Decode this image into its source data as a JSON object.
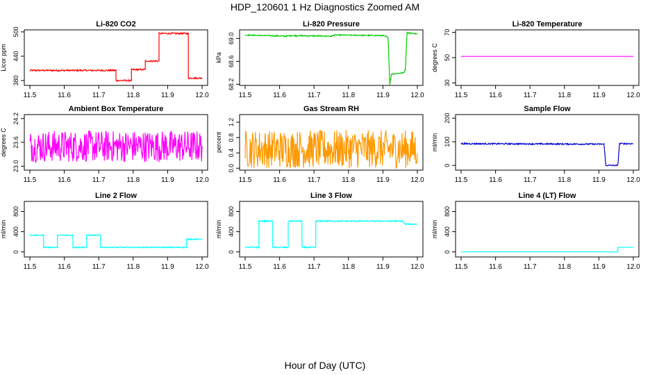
{
  "title": "HDP_120601  1 Hz Diagnostics Zoomed AM",
  "xlabel": "Hour of Day (UTC)",
  "chart_data": [
    {
      "type": "line",
      "title": "Li-820 CO2",
      "ylabel": "Licor ppm",
      "color": "#ff0000",
      "xlim": [
        11.5,
        12.0
      ],
      "ylim": [
        368,
        505
      ],
      "xticks": [
        "11.5",
        "11.6",
        "11.7",
        "11.8",
        "11.9",
        "12.0"
      ],
      "yticks": [
        {
          "v": 380,
          "label": "380"
        },
        {
          "v": 440,
          "label": "440"
        },
        {
          "v": 500,
          "label": "500"
        }
      ],
      "noise": 2,
      "series": [
        {
          "x": [
            11.5,
            11.75,
            11.75,
            11.795,
            11.795,
            11.835,
            11.835,
            11.875,
            11.875,
            11.96,
            11.96,
            12.0
          ],
          "values": [
            405,
            405,
            380,
            380,
            407,
            407,
            428,
            428,
            496,
            496,
            386,
            386
          ]
        }
      ]
    },
    {
      "type": "line",
      "title": "Li-820 Pressure",
      "ylabel": "kPa",
      "color": "#00cc00",
      "xlim": [
        11.5,
        12.0
      ],
      "ylim": [
        68.18,
        69.15
      ],
      "xticks": [
        "11.5",
        "11.6",
        "11.7",
        "11.8",
        "11.9",
        "12.0"
      ],
      "yticks": [
        {
          "v": 68.2,
          "label": "68.2"
        },
        {
          "v": 68.6,
          "label": "68.6"
        },
        {
          "v": 69.0,
          "label": "69.0"
        }
      ],
      "noise": 0.01,
      "series": [
        {
          "x": [
            11.5,
            11.62,
            11.63,
            11.75,
            11.76,
            11.9,
            11.915,
            11.92,
            11.925,
            11.96,
            11.965,
            11.97,
            12.0
          ],
          "values": [
            69.06,
            69.04,
            69.05,
            69.04,
            69.06,
            69.05,
            69.02,
            68.2,
            68.38,
            68.4,
            68.45,
            69.1,
            69.08
          ]
        }
      ]
    },
    {
      "type": "line",
      "title": "Li-820 Temperature",
      "ylabel": "degrees C",
      "color": "#ff00ff",
      "xlim": [
        11.5,
        12.0
      ],
      "ylim": [
        28,
        72
      ],
      "xticks": [
        "11.5",
        "11.6",
        "11.7",
        "11.8",
        "11.9",
        "12.0"
      ],
      "yticks": [
        {
          "v": 30,
          "label": "30"
        },
        {
          "v": 50,
          "label": "50"
        },
        {
          "v": 70,
          "label": "70"
        }
      ],
      "noise": 0,
      "series": [
        {
          "x": [
            11.5,
            12.0
          ],
          "values": [
            51,
            51
          ]
        }
      ]
    },
    {
      "type": "line",
      "title": "Ambient Box Temperature",
      "ylabel": "degrees C",
      "color": "#ff00ff",
      "xlim": [
        11.5,
        12.0
      ],
      "ylim": [
        22.9,
        24.3
      ],
      "xticks": [
        "11.5",
        "11.6",
        "11.7",
        "11.8",
        "11.9",
        "12.0"
      ],
      "yticks": [
        {
          "v": 23.0,
          "label": "23.0"
        },
        {
          "v": 23.6,
          "label": "23.6"
        },
        {
          "v": 24.2,
          "label": "24.2"
        }
      ],
      "noise": 0.4,
      "series": [
        {
          "x": [
            11.5,
            12.0
          ],
          "values": [
            23.5,
            23.5
          ]
        }
      ]
    },
    {
      "type": "line",
      "title": "Gas Stream RH",
      "ylabel": "percent",
      "color": "#ff9900",
      "xlim": [
        11.5,
        12.0
      ],
      "ylim": [
        -0.05,
        1.4
      ],
      "xticks": [
        "11.5",
        "11.6",
        "11.7",
        "11.8",
        "11.9",
        "12.0"
      ],
      "yticks": [
        {
          "v": 0.0,
          "label": "0.0"
        },
        {
          "v": 0.4,
          "label": "0.4"
        },
        {
          "v": 0.8,
          "label": "0.8"
        },
        {
          "v": 1.2,
          "label": "1.2"
        }
      ],
      "noise": 0.5,
      "series": [
        {
          "x": [
            11.5,
            12.0
          ],
          "values": [
            0.5,
            0.5
          ]
        }
      ]
    },
    {
      "type": "line",
      "title": "Sample Flow",
      "ylabel": "ml/min",
      "color": "#0000cc",
      "xlim": [
        11.5,
        12.0
      ],
      "ylim": [
        -20,
        215
      ],
      "xticks": [
        "11.5",
        "11.6",
        "11.7",
        "11.8",
        "11.9",
        "12.0"
      ],
      "yticks": [
        {
          "v": 0,
          "label": "0"
        },
        {
          "v": 100,
          "label": "100"
        },
        {
          "v": 200,
          "label": "200"
        }
      ],
      "noise": 3,
      "series": [
        {
          "x": [
            11.5,
            11.915,
            11.92,
            11.955,
            11.96,
            12.0
          ],
          "values": [
            92,
            90,
            0,
            0,
            92,
            92
          ]
        }
      ]
    },
    {
      "type": "line",
      "title": "Line 2 Flow",
      "ylabel": "ml/min",
      "color": "#00ffff",
      "xlim": [
        11.5,
        12.0
      ],
      "ylim": [
        -100,
        1000
      ],
      "xticks": [
        "11.5",
        "11.6",
        "11.7",
        "11.8",
        "11.9",
        "12.0"
      ],
      "yticks": [
        {
          "v": 0,
          "label": "0"
        },
        {
          "v": 400,
          "label": "400"
        },
        {
          "v": 800,
          "label": "800"
        }
      ],
      "noise": 10,
      "series": [
        {
          "x": [
            11.5,
            11.54,
            11.54,
            11.58,
            11.58,
            11.625,
            11.625,
            11.665,
            11.665,
            11.705,
            11.705,
            11.955,
            11.955,
            12.0
          ],
          "values": [
            330,
            330,
            90,
            90,
            330,
            330,
            90,
            90,
            330,
            330,
            90,
            90,
            250,
            250
          ]
        }
      ]
    },
    {
      "type": "line",
      "title": "Line 3 Flow",
      "ylabel": "ml/min",
      "color": "#00ffff",
      "xlim": [
        11.5,
        12.0
      ],
      "ylim": [
        -100,
        1000
      ],
      "xticks": [
        "11.5",
        "11.6",
        "11.7",
        "11.8",
        "11.9",
        "12.0"
      ],
      "yticks": [
        {
          "v": 0,
          "label": "0"
        },
        {
          "v": 400,
          "label": "400"
        },
        {
          "v": 800,
          "label": "800"
        }
      ],
      "noise": 12,
      "series": [
        {
          "x": [
            11.5,
            11.54,
            11.54,
            11.58,
            11.58,
            11.625,
            11.625,
            11.665,
            11.665,
            11.705,
            11.705,
            11.955,
            11.965,
            12.0
          ],
          "values": [
            90,
            90,
            610,
            610,
            90,
            90,
            610,
            610,
            90,
            90,
            610,
            610,
            550,
            550
          ]
        }
      ]
    },
    {
      "type": "line",
      "title": "Line 4 (LT) Flow",
      "ylabel": "ml/min",
      "color": "#00ffff",
      "xlim": [
        11.5,
        12.0
      ],
      "ylim": [
        -100,
        1000
      ],
      "xticks": [
        "11.5",
        "11.6",
        "11.7",
        "11.8",
        "11.9",
        "12.0"
      ],
      "yticks": [
        {
          "v": 0,
          "label": "0"
        },
        {
          "v": 400,
          "label": "400"
        },
        {
          "v": 800,
          "label": "800"
        }
      ],
      "noise": 0,
      "series": [
        {
          "x": [
            11.5,
            11.955,
            11.955,
            12.0
          ],
          "values": [
            0,
            0,
            90,
            90
          ]
        }
      ]
    }
  ]
}
